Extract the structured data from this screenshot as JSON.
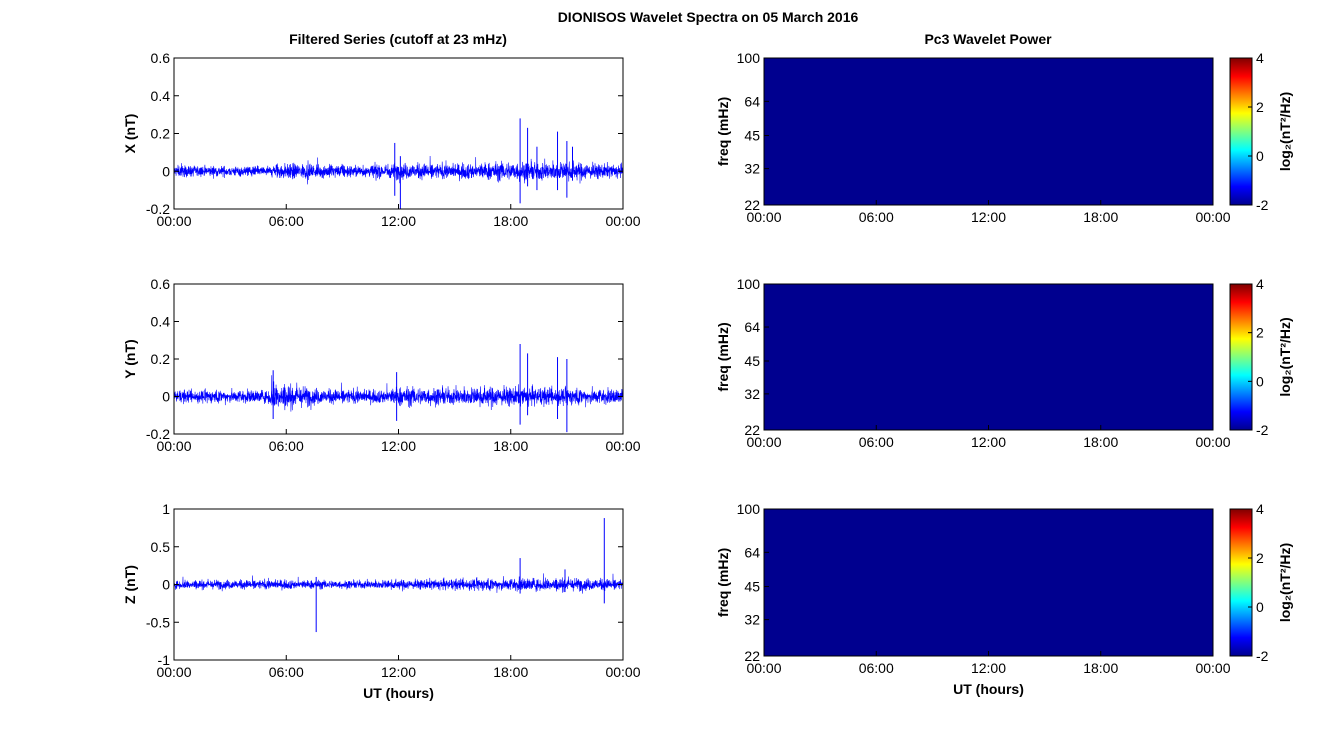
{
  "figure": {
    "title": "DIONISOS Wavelet Spectra on 05 March 2016",
    "left_column_title": "Filtered Series (cutoff at 23 mHz)",
    "right_column_title": "Pc3 Wavelet Power"
  },
  "chart_data": [
    {
      "type": "line",
      "panel": "X",
      "ylabel": "X (nT)",
      "xlabel": "",
      "ylim": [
        -0.2,
        0.6
      ],
      "yticks": [
        "-0.2",
        "0",
        "0.2",
        "0.4",
        "0.6"
      ],
      "xticks": [
        "00:00",
        "06:00",
        "12:00",
        "18:00",
        "00:00"
      ],
      "xlim_hours": [
        0,
        24
      ],
      "series": [
        {
          "color": "#0000ff",
          "baseline": 0.0,
          "noise_envelope": [
            [
              0,
              0.035
            ],
            [
              5,
              0.03
            ],
            [
              5.5,
              0.05
            ],
            [
              7,
              0.045
            ],
            [
              10,
              0.035
            ],
            [
              12,
              0.05
            ],
            [
              15,
              0.045
            ],
            [
              18,
              0.06
            ],
            [
              20,
              0.055
            ],
            [
              22,
              0.05
            ],
            [
              24,
              0.04
            ]
          ],
          "spikes": [
            {
              "t": 11.8,
              "max": 0.15,
              "min": -0.13
            },
            {
              "t": 12.1,
              "max": 0.08,
              "min": -0.2
            },
            {
              "t": 18.5,
              "max": 0.28,
              "min": -0.17
            },
            {
              "t": 18.9,
              "max": 0.23,
              "min": -0.08
            },
            {
              "t": 19.4,
              "max": 0.13,
              "min": -0.1
            },
            {
              "t": 20.5,
              "max": 0.21,
              "min": -0.1
            },
            {
              "t": 21.0,
              "max": 0.16,
              "min": -0.14
            },
            {
              "t": 21.3,
              "max": 0.13,
              "min": -0.05
            }
          ]
        }
      ]
    },
    {
      "type": "line",
      "panel": "Y",
      "ylabel": "Y (nT)",
      "xlabel": "",
      "ylim": [
        -0.2,
        0.6
      ],
      "yticks": [
        "-0.2",
        "0",
        "0.2",
        "0.4",
        "0.6"
      ],
      "xticks": [
        "00:00",
        "06:00",
        "12:00",
        "18:00",
        "00:00"
      ],
      "xlim_hours": [
        0,
        24
      ],
      "series": [
        {
          "color": "#0000ff",
          "baseline": 0.0,
          "noise_envelope": [
            [
              0,
              0.04
            ],
            [
              5,
              0.04
            ],
            [
              5.3,
              0.09
            ],
            [
              6.5,
              0.07
            ],
            [
              8,
              0.045
            ],
            [
              11,
              0.04
            ],
            [
              12,
              0.06
            ],
            [
              15,
              0.05
            ],
            [
              18,
              0.06
            ],
            [
              22,
              0.05
            ],
            [
              24,
              0.045
            ]
          ],
          "spikes": [
            {
              "t": 5.3,
              "max": 0.14,
              "min": -0.12
            },
            {
              "t": 11.9,
              "max": 0.13,
              "min": -0.13
            },
            {
              "t": 18.5,
              "max": 0.28,
              "min": -0.15
            },
            {
              "t": 18.9,
              "max": 0.23,
              "min": -0.1
            },
            {
              "t": 20.5,
              "max": 0.21,
              "min": -0.12
            },
            {
              "t": 21.0,
              "max": 0.2,
              "min": -0.19
            }
          ]
        }
      ]
    },
    {
      "type": "line",
      "panel": "Z",
      "ylabel": "Z (nT)",
      "xlabel": "UT (hours)",
      "ylim": [
        -1,
        1
      ],
      "yticks": [
        "-1",
        "-0.5",
        "0",
        "0.5",
        "1"
      ],
      "xticks": [
        "00:00",
        "06:00",
        "12:00",
        "18:00",
        "00:00"
      ],
      "xlim_hours": [
        0,
        24
      ],
      "series": [
        {
          "color": "#0000ff",
          "baseline": 0.0,
          "noise_envelope": [
            [
              0,
              0.07
            ],
            [
              6,
              0.07
            ],
            [
              10,
              0.06
            ],
            [
              14,
              0.08
            ],
            [
              18,
              0.1
            ],
            [
              21,
              0.1
            ],
            [
              24,
              0.08
            ]
          ],
          "spikes": [
            {
              "t": 7.6,
              "max": 0.1,
              "min": -0.63
            },
            {
              "t": 18.5,
              "max": 0.35,
              "min": -0.12
            },
            {
              "t": 20.9,
              "max": 0.2,
              "min": -0.1
            },
            {
              "t": 23.0,
              "max": 0.88,
              "min": -0.25
            }
          ]
        }
      ]
    },
    {
      "type": "heatmap",
      "panel": "X",
      "ylabel": "freq (mHz)",
      "xlabel": "",
      "yticks": [
        "22",
        "32",
        "45",
        "64",
        "100"
      ],
      "y_scale": "log",
      "xticks": [
        "00:00",
        "06:00",
        "12:00",
        "18:00",
        "00:00"
      ],
      "fill_color": "#00008f",
      "colorbar": {
        "label": "log₂(nT²/Hz)",
        "ticks": [
          "-2",
          "0",
          "2",
          "4"
        ],
        "range": [
          -2,
          4
        ]
      }
    },
    {
      "type": "heatmap",
      "panel": "Y",
      "ylabel": "freq (mHz)",
      "xlabel": "",
      "yticks": [
        "22",
        "32",
        "45",
        "64",
        "100"
      ],
      "y_scale": "log",
      "xticks": [
        "00:00",
        "06:00",
        "12:00",
        "18:00",
        "00:00"
      ],
      "fill_color": "#00008f",
      "colorbar": {
        "label": "log₂(nT²/Hz)",
        "ticks": [
          "-2",
          "0",
          "2",
          "4"
        ],
        "range": [
          -2,
          4
        ]
      }
    },
    {
      "type": "heatmap",
      "panel": "Z",
      "ylabel": "freq (mHz)",
      "xlabel": "UT (hours)",
      "yticks": [
        "22",
        "32",
        "45",
        "64",
        "100"
      ],
      "y_scale": "log",
      "xticks": [
        "00:00",
        "06:00",
        "12:00",
        "18:00",
        "00:00"
      ],
      "fill_color": "#00008f",
      "colorbar": {
        "label": "log₂(nT²/Hz)",
        "ticks": [
          "-2",
          "0",
          "2",
          "4"
        ],
        "range": [
          -2,
          4
        ]
      }
    }
  ]
}
